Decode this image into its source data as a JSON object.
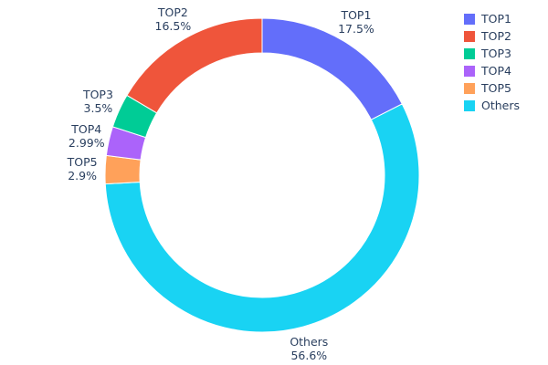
{
  "chart_data": {
    "type": "pie",
    "subtype": "donut",
    "hole": 0.78,
    "title": "",
    "categories": [
      "TOP1",
      "TOP2",
      "TOP3",
      "TOP4",
      "TOP5",
      "Others"
    ],
    "values": [
      17.5,
      16.5,
      3.5,
      2.99,
      2.9,
      56.6
    ],
    "labels_display": [
      "17.5%",
      "16.5%",
      "3.5%",
      "2.99%",
      "2.9%",
      "56.6%"
    ],
    "colors": [
      "#636efa",
      "#ef553b",
      "#00cc96",
      "#ab63fa",
      "#ffa15a",
      "#19d3f3"
    ],
    "text_color": "#2a3f5f",
    "legend_position": "top-right",
    "legend_entries": [
      "TOP1",
      "TOP2",
      "TOP3",
      "TOP4",
      "TOP5",
      "Others"
    ]
  }
}
